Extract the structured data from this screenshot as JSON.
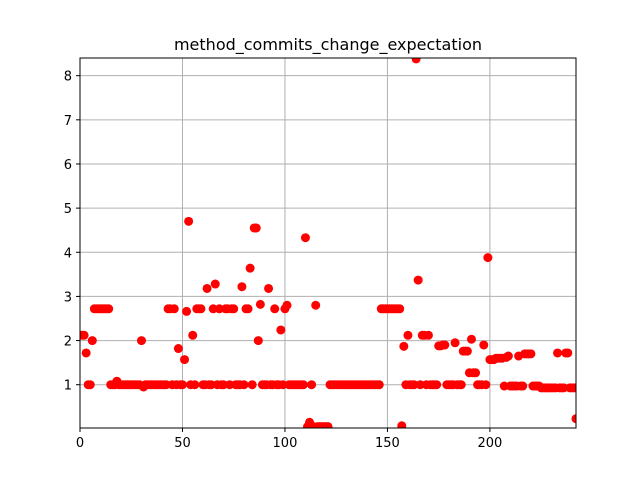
{
  "chart_data": {
    "type": "scatter",
    "title": "method_commits_change_expectation",
    "xlabel": "",
    "ylabel": "",
    "xlim": [
      0,
      242
    ],
    "ylim": [
      0.02,
      8.4
    ],
    "grid": true,
    "marker_color": "#ff0000",
    "x_ticks": [
      0,
      50,
      100,
      150,
      200
    ],
    "y_ticks": [
      1,
      2,
      3,
      4,
      5,
      6,
      7,
      8
    ],
    "series": [
      {
        "points": [
          [
            1,
            2.12
          ],
          [
            2,
            2.12
          ],
          [
            3,
            1.72
          ],
          [
            4,
            1.0
          ],
          [
            5,
            1.0
          ],
          [
            6,
            2.0
          ],
          [
            7,
            2.72
          ],
          [
            8,
            2.72
          ],
          [
            9,
            2.72
          ],
          [
            10,
            2.72
          ],
          [
            11,
            2.72
          ],
          [
            12,
            2.72
          ],
          [
            13,
            2.72
          ],
          [
            14,
            2.72
          ],
          [
            15,
            1.0
          ],
          [
            16,
            1.0
          ],
          [
            17,
            1.0
          ],
          [
            18,
            1.08
          ],
          [
            19,
            1.0
          ],
          [
            20,
            1.0
          ],
          [
            21,
            1.0
          ],
          [
            22,
            1.0
          ],
          [
            23,
            1.0
          ],
          [
            24,
            1.0
          ],
          [
            25,
            1.0
          ],
          [
            26,
            1.0
          ],
          [
            27,
            1.0
          ],
          [
            28,
            1.0
          ],
          [
            29,
            1.0
          ],
          [
            30,
            2.0
          ],
          [
            31,
            0.95
          ],
          [
            32,
            1.0
          ],
          [
            33,
            1.0
          ],
          [
            34,
            1.0
          ],
          [
            35,
            1.0
          ],
          [
            36,
            1.0
          ],
          [
            37,
            1.0
          ],
          [
            38,
            1.0
          ],
          [
            39,
            1.0
          ],
          [
            40,
            1.0
          ],
          [
            41,
            1.0
          ],
          [
            42,
            1.0
          ],
          [
            43,
            2.72
          ],
          [
            44,
            2.72
          ],
          [
            45,
            1.0
          ],
          [
            46,
            2.72
          ],
          [
            47,
            1.0
          ],
          [
            48,
            1.82
          ],
          [
            49,
            1.0
          ],
          [
            50,
            1.0
          ],
          [
            51,
            1.57
          ],
          [
            52,
            2.66
          ],
          [
            53,
            4.7
          ],
          [
            54,
            1.0
          ],
          [
            55,
            2.12
          ],
          [
            56,
            1.0
          ],
          [
            57,
            2.72
          ],
          [
            58,
            2.72
          ],
          [
            59,
            2.72
          ],
          [
            60,
            1.0
          ],
          [
            61,
            1.0
          ],
          [
            62,
            3.18
          ],
          [
            63,
            1.0
          ],
          [
            64,
            1.0
          ],
          [
            65,
            2.72
          ],
          [
            66,
            3.28
          ],
          [
            67,
            1.0
          ],
          [
            68,
            2.72
          ],
          [
            69,
            1.0
          ],
          [
            70,
            1.0
          ],
          [
            71,
            2.72
          ],
          [
            72,
            2.72
          ],
          [
            73,
            1.0
          ],
          [
            74,
            2.72
          ],
          [
            75,
            2.72
          ],
          [
            76,
            1.0
          ],
          [
            77,
            1.0
          ],
          [
            78,
            1.0
          ],
          [
            79,
            3.22
          ],
          [
            80,
            1.0
          ],
          [
            81,
            2.72
          ],
          [
            82,
            2.72
          ],
          [
            83,
            3.64
          ],
          [
            84,
            1.0
          ],
          [
            85,
            4.55
          ],
          [
            86,
            4.55
          ],
          [
            87,
            2.0
          ],
          [
            88,
            2.82
          ],
          [
            89,
            1.0
          ],
          [
            90,
            1.0
          ],
          [
            91,
            1.0
          ],
          [
            92,
            3.18
          ],
          [
            93,
            1.0
          ],
          [
            94,
            1.0
          ],
          [
            95,
            2.72
          ],
          [
            96,
            1.0
          ],
          [
            97,
            1.0
          ],
          [
            98,
            2.24
          ],
          [
            99,
            1.0
          ],
          [
            100,
            2.72
          ],
          [
            101,
            2.8
          ],
          [
            102,
            1.0
          ],
          [
            103,
            1.0
          ],
          [
            104,
            1.0
          ],
          [
            105,
            1.0
          ],
          [
            106,
            1.0
          ],
          [
            107,
            1.0
          ],
          [
            108,
            1.0
          ],
          [
            109,
            1.0
          ],
          [
            110,
            4.33
          ],
          [
            111,
            0.05
          ],
          [
            112,
            0.15
          ],
          [
            113,
            1.0
          ],
          [
            114,
            0.05
          ],
          [
            115,
            2.8
          ],
          [
            116,
            0.05
          ],
          [
            117,
            0.05
          ],
          [
            118,
            0.05
          ],
          [
            119,
            0.05
          ],
          [
            120,
            0.05
          ],
          [
            121,
            0.05
          ],
          [
            122,
            1.0
          ],
          [
            123,
            1.0
          ],
          [
            124,
            1.0
          ],
          [
            125,
            1.0
          ],
          [
            126,
            1.0
          ],
          [
            127,
            1.0
          ],
          [
            128,
            1.0
          ],
          [
            129,
            1.0
          ],
          [
            130,
            1.0
          ],
          [
            131,
            1.0
          ],
          [
            132,
            1.0
          ],
          [
            133,
            1.0
          ],
          [
            134,
            1.0
          ],
          [
            135,
            1.0
          ],
          [
            136,
            1.0
          ],
          [
            137,
            1.0
          ],
          [
            138,
            1.0
          ],
          [
            139,
            1.0
          ],
          [
            140,
            1.0
          ],
          [
            141,
            1.0
          ],
          [
            142,
            1.0
          ],
          [
            143,
            1.0
          ],
          [
            144,
            1.0
          ],
          [
            145,
            1.0
          ],
          [
            146,
            1.0
          ],
          [
            147,
            2.72
          ],
          [
            148,
            2.72
          ],
          [
            149,
            2.72
          ],
          [
            150,
            2.72
          ],
          [
            151,
            2.72
          ],
          [
            152,
            2.72
          ],
          [
            153,
            2.72
          ],
          [
            154,
            2.72
          ],
          [
            155,
            2.72
          ],
          [
            156,
            2.72
          ],
          [
            157,
            0.07
          ],
          [
            158,
            1.87
          ],
          [
            159,
            1.0
          ],
          [
            160,
            2.12
          ],
          [
            161,
            1.0
          ],
          [
            162,
            1.0
          ],
          [
            163,
            1.0
          ],
          [
            164,
            8.38
          ],
          [
            165,
            3.37
          ],
          [
            166,
            1.0
          ],
          [
            167,
            2.12
          ],
          [
            168,
            2.12
          ],
          [
            169,
            1.0
          ],
          [
            170,
            2.12
          ],
          [
            171,
            1.0
          ],
          [
            172,
            1.0
          ],
          [
            173,
            1.0
          ],
          [
            174,
            1.0
          ],
          [
            175,
            1.88
          ],
          [
            176,
            1.88
          ],
          [
            177,
            1.9
          ],
          [
            178,
            1.9
          ],
          [
            179,
            1.0
          ],
          [
            180,
            1.0
          ],
          [
            181,
            1.0
          ],
          [
            182,
            1.0
          ],
          [
            183,
            1.95
          ],
          [
            184,
            1.0
          ],
          [
            185,
            1.0
          ],
          [
            186,
            1.0
          ],
          [
            187,
            1.76
          ],
          [
            188,
            1.76
          ],
          [
            189,
            1.76
          ],
          [
            190,
            1.27
          ],
          [
            191,
            2.03
          ],
          [
            192,
            1.27
          ],
          [
            193,
            1.27
          ],
          [
            194,
            1.0
          ],
          [
            195,
            1.0
          ],
          [
            196,
            1.0
          ],
          [
            197,
            1.9
          ],
          [
            198,
            1.0
          ],
          [
            199,
            3.88
          ],
          [
            200,
            1.57
          ],
          [
            201,
            1.57
          ],
          [
            202,
            1.57
          ],
          [
            203,
            1.6
          ],
          [
            204,
            1.6
          ],
          [
            205,
            1.6
          ],
          [
            206,
            1.6
          ],
          [
            207,
            0.97
          ],
          [
            208,
            1.62
          ],
          [
            209,
            1.65
          ],
          [
            210,
            0.97
          ],
          [
            211,
            0.97
          ],
          [
            212,
            0.97
          ],
          [
            213,
            0.97
          ],
          [
            214,
            1.65
          ],
          [
            215,
            0.97
          ],
          [
            216,
            0.97
          ],
          [
            217,
            1.7
          ],
          [
            218,
            1.7
          ],
          [
            219,
            1.7
          ],
          [
            220,
            1.7
          ],
          [
            221,
            0.97
          ],
          [
            222,
            0.97
          ],
          [
            223,
            0.97
          ],
          [
            224,
            0.97
          ],
          [
            225,
            0.93
          ],
          [
            226,
            0.93
          ],
          [
            227,
            0.93
          ],
          [
            228,
            0.93
          ],
          [
            229,
            0.93
          ],
          [
            230,
            0.93
          ],
          [
            231,
            0.93
          ],
          [
            232,
            0.93
          ],
          [
            233,
            1.72
          ],
          [
            234,
            0.93
          ],
          [
            235,
            0.93
          ],
          [
            236,
            0.93
          ],
          [
            237,
            1.72
          ],
          [
            238,
            1.72
          ],
          [
            239,
            0.93
          ],
          [
            240,
            0.93
          ],
          [
            241,
            0.93
          ],
          [
            242,
            0.23
          ]
        ]
      }
    ]
  }
}
